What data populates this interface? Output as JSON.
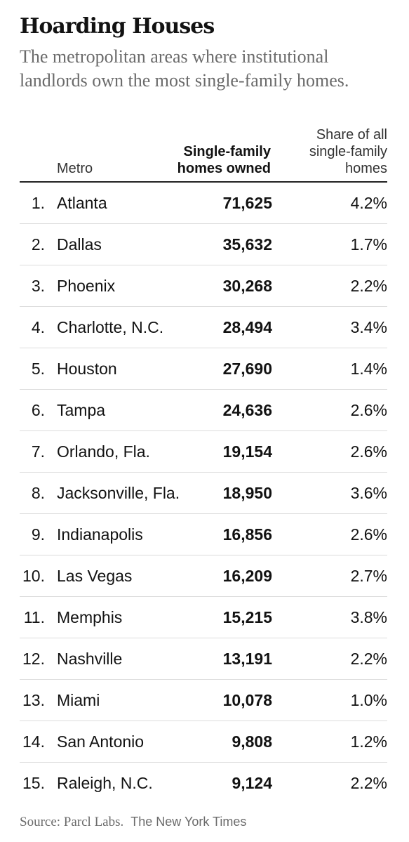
{
  "header": {
    "title": "Hoarding Houses",
    "subtitle": "The metropolitan areas where institutional landlords own the most single-family homes."
  },
  "table": {
    "columns": {
      "metro": "Metro",
      "homes_line1": "Single-family",
      "homes_line2": "homes owned",
      "share_line1": "Share of all",
      "share_line2": "single-family",
      "share_line3": "homes"
    },
    "rows": [
      {
        "rank": "1.",
        "metro": "Atlanta",
        "homes": "71,625",
        "share": "4.2%"
      },
      {
        "rank": "2.",
        "metro": "Dallas",
        "homes": "35,632",
        "share": "1.7%"
      },
      {
        "rank": "3.",
        "metro": "Phoenix",
        "homes": "30,268",
        "share": "2.2%"
      },
      {
        "rank": "4.",
        "metro": "Charlotte, N.C.",
        "homes": "28,494",
        "share": "3.4%"
      },
      {
        "rank": "5.",
        "metro": "Houston",
        "homes": "27,690",
        "share": "1.4%"
      },
      {
        "rank": "6.",
        "metro": "Tampa",
        "homes": "24,636",
        "share": "2.6%"
      },
      {
        "rank": "7.",
        "metro": "Orlando, Fla.",
        "homes": "19,154",
        "share": "2.6%"
      },
      {
        "rank": "8.",
        "metro": "Jacksonville, Fla.",
        "homes": "18,950",
        "share": "3.6%"
      },
      {
        "rank": "9.",
        "metro": "Indianapolis",
        "homes": "16,856",
        "share": "2.6%"
      },
      {
        "rank": "10.",
        "metro": "Las Vegas",
        "homes": "16,209",
        "share": "2.7%"
      },
      {
        "rank": "11.",
        "metro": "Memphis",
        "homes": "15,215",
        "share": "3.8%"
      },
      {
        "rank": "12.",
        "metro": "Nashville",
        "homes": "13,191",
        "share": "2.2%"
      },
      {
        "rank": "13.",
        "metro": "Miami",
        "homes": "10,078",
        "share": "1.0%"
      },
      {
        "rank": "14.",
        "metro": "San Antonio",
        "homes": "9,808",
        "share": "1.2%"
      },
      {
        "rank": "15.",
        "metro": "Raleigh, N.C.",
        "homes": "9,124",
        "share": "2.2%"
      }
    ]
  },
  "footer": {
    "source": "Source: Parcl Labs.",
    "credit": "The New York Times"
  },
  "chart_data": {
    "type": "table",
    "title": "Hoarding Houses",
    "subtitle": "The metropolitan areas where institutional landlords own the most single-family homes.",
    "columns": [
      "Metro",
      "Single-family homes owned",
      "Share of all single-family homes"
    ],
    "rows": [
      [
        "Atlanta",
        71625,
        "4.2%"
      ],
      [
        "Dallas",
        35632,
        "1.7%"
      ],
      [
        "Phoenix",
        30268,
        "2.2%"
      ],
      [
        "Charlotte, N.C.",
        28494,
        "3.4%"
      ],
      [
        "Houston",
        27690,
        "1.4%"
      ],
      [
        "Tampa",
        24636,
        "2.6%"
      ],
      [
        "Orlando, Fla.",
        19154,
        "2.6%"
      ],
      [
        "Jacksonville, Fla.",
        18950,
        "3.6%"
      ],
      [
        "Indianapolis",
        16856,
        "2.6%"
      ],
      [
        "Las Vegas",
        16209,
        "2.7%"
      ],
      [
        "Memphis",
        15215,
        "3.8%"
      ],
      [
        "Nashville",
        13191,
        "2.2%"
      ],
      [
        "Miami",
        10078,
        "1.0%"
      ],
      [
        "San Antonio",
        9808,
        "1.2%"
      ],
      [
        "Raleigh, N.C.",
        9124,
        "2.2%"
      ]
    ]
  }
}
